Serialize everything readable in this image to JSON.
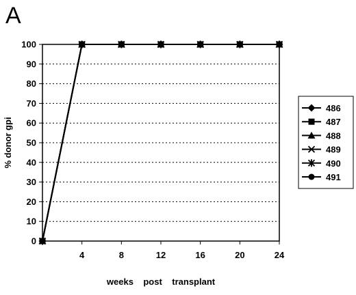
{
  "chart_data": {
    "type": "line",
    "panel_label": "A",
    "xlabel": "weeks    post    transplant",
    "ylabel": "% donor gpi",
    "x": [
      0,
      4,
      8,
      12,
      16,
      20,
      24
    ],
    "x_tick_labels": [
      "4",
      "8",
      "12",
      "16",
      "20",
      "24"
    ],
    "xlim": [
      0,
      24
    ],
    "ylim": [
      0,
      100
    ],
    "y_ticks": [
      0,
      10,
      20,
      30,
      40,
      50,
      60,
      70,
      80,
      90,
      100
    ],
    "grid": "horizontal dashed",
    "legend_position": "right",
    "series": [
      {
        "name": "486",
        "marker": "diamond",
        "values": [
          0,
          100,
          100,
          100,
          100,
          100,
          100
        ]
      },
      {
        "name": "487",
        "marker": "square",
        "values": [
          0,
          100,
          100,
          100,
          100,
          100,
          100
        ]
      },
      {
        "name": "488",
        "marker": "triangle",
        "values": [
          0,
          100,
          100,
          100,
          100,
          100,
          100
        ]
      },
      {
        "name": "489",
        "marker": "x",
        "values": [
          0,
          100,
          100,
          100,
          100,
          100,
          100
        ]
      },
      {
        "name": "490",
        "marker": "asterisk",
        "values": [
          0,
          100,
          100,
          100,
          100,
          100,
          100
        ]
      },
      {
        "name": "491",
        "marker": "circle",
        "values": [
          0,
          100,
          100,
          100,
          100,
          100,
          100
        ]
      }
    ]
  }
}
